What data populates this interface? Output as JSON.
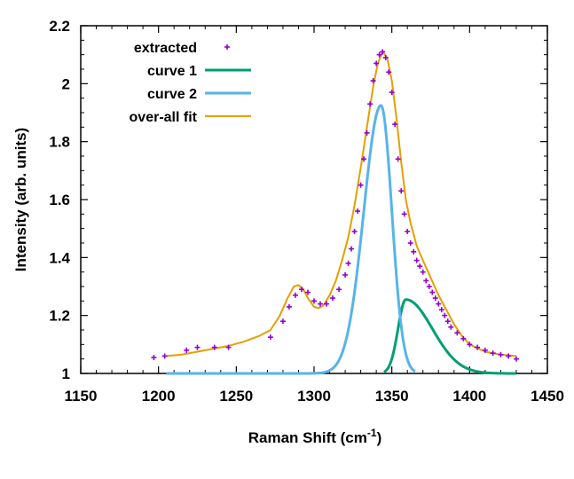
{
  "chart_data": {
    "type": "line",
    "xlabel": "Raman Shift (cm",
    "xlabel_sup": "-1",
    "xlabel_tail": ")",
    "ylabel": "Intensity (arb. units)",
    "xlim": [
      1150,
      1450
    ],
    "ylim": [
      1,
      2.2
    ],
    "xticks": [
      1150,
      1200,
      1250,
      1300,
      1350,
      1400,
      1450
    ],
    "xtick_labels": [
      "1150",
      "1200",
      "1250",
      "1300",
      "1350",
      "1400",
      "1450"
    ],
    "yticks": [
      1,
      1.2,
      1.4,
      1.6,
      1.8,
      2,
      2.2
    ],
    "ytick_labels": [
      "1",
      "1.2",
      "1.4",
      "1.6",
      "1.8",
      "2",
      "2.2"
    ],
    "grid": false,
    "legend_position": "top-left",
    "series": [
      {
        "name": "extracted",
        "kind": "scatter",
        "color": "#9400d3",
        "x": [
          1197,
          1204,
          1218,
          1225,
          1236,
          1245,
          1272,
          1280,
          1284,
          1288,
          1292,
          1296,
          1300,
          1304,
          1308,
          1312,
          1316,
          1320,
          1322,
          1324,
          1326,
          1328,
          1330,
          1332,
          1334,
          1336,
          1338,
          1340,
          1342,
          1344,
          1346,
          1348,
          1350,
          1352,
          1354,
          1356,
          1358,
          1360,
          1362,
          1364,
          1366,
          1368,
          1370,
          1372,
          1374,
          1376,
          1378,
          1380,
          1382,
          1384,
          1386,
          1388,
          1392,
          1396,
          1400,
          1405,
          1410,
          1415,
          1420,
          1425,
          1430
        ],
        "y": [
          1.055,
          1.06,
          1.08,
          1.09,
          1.09,
          1.09,
          1.125,
          1.18,
          1.23,
          1.27,
          1.29,
          1.28,
          1.25,
          1.24,
          1.24,
          1.26,
          1.29,
          1.34,
          1.38,
          1.43,
          1.49,
          1.56,
          1.65,
          1.74,
          1.83,
          1.93,
          2.01,
          2.07,
          2.1,
          2.11,
          2.09,
          2.04,
          1.97,
          1.86,
          1.74,
          1.63,
          1.55,
          1.49,
          1.45,
          1.42,
          1.39,
          1.37,
          1.35,
          1.32,
          1.3,
          1.28,
          1.26,
          1.24,
          1.22,
          1.2,
          1.18,
          1.16,
          1.14,
          1.12,
          1.1,
          1.09,
          1.08,
          1.07,
          1.065,
          1.06,
          1.05
        ]
      },
      {
        "name": "curve 1",
        "kind": "gaussian",
        "color": "#009e73",
        "x_range": [
          1345,
          1430
        ],
        "baseline": 1.0,
        "amplitude": 0.255,
        "center": 1359,
        "sigma_left": 5,
        "sigma_right": 17
      },
      {
        "name": "curve 2",
        "kind": "gaussian",
        "color": "#56b4e9",
        "x_range": [
          1205,
          1365
        ],
        "baseline": 1.0,
        "amplitude": 0.925,
        "center": 1343,
        "sigma_left": 11,
        "sigma_right": 7
      },
      {
        "name": "over-all fit",
        "kind": "line",
        "color": "#e69f00",
        "x": [
          1205,
          1215,
          1225,
          1235,
          1245,
          1255,
          1265,
          1272,
          1278,
          1283,
          1287,
          1290,
          1293,
          1296,
          1300,
          1303,
          1306,
          1310,
          1314,
          1318,
          1322,
          1326,
          1330,
          1334,
          1338,
          1341,
          1344,
          1347,
          1350,
          1353,
          1356,
          1359,
          1362,
          1366,
          1370,
          1375,
          1380,
          1385,
          1390,
          1395,
          1400,
          1410,
          1420,
          1430
        ],
        "y": [
          1.06,
          1.065,
          1.075,
          1.085,
          1.095,
          1.11,
          1.13,
          1.15,
          1.2,
          1.26,
          1.3,
          1.305,
          1.29,
          1.26,
          1.23,
          1.225,
          1.235,
          1.27,
          1.32,
          1.39,
          1.47,
          1.58,
          1.71,
          1.85,
          1.99,
          2.07,
          2.11,
          2.09,
          2.01,
          1.88,
          1.73,
          1.6,
          1.52,
          1.44,
          1.39,
          1.33,
          1.27,
          1.22,
          1.17,
          1.13,
          1.1,
          1.075,
          1.065,
          1.06
        ]
      }
    ]
  }
}
